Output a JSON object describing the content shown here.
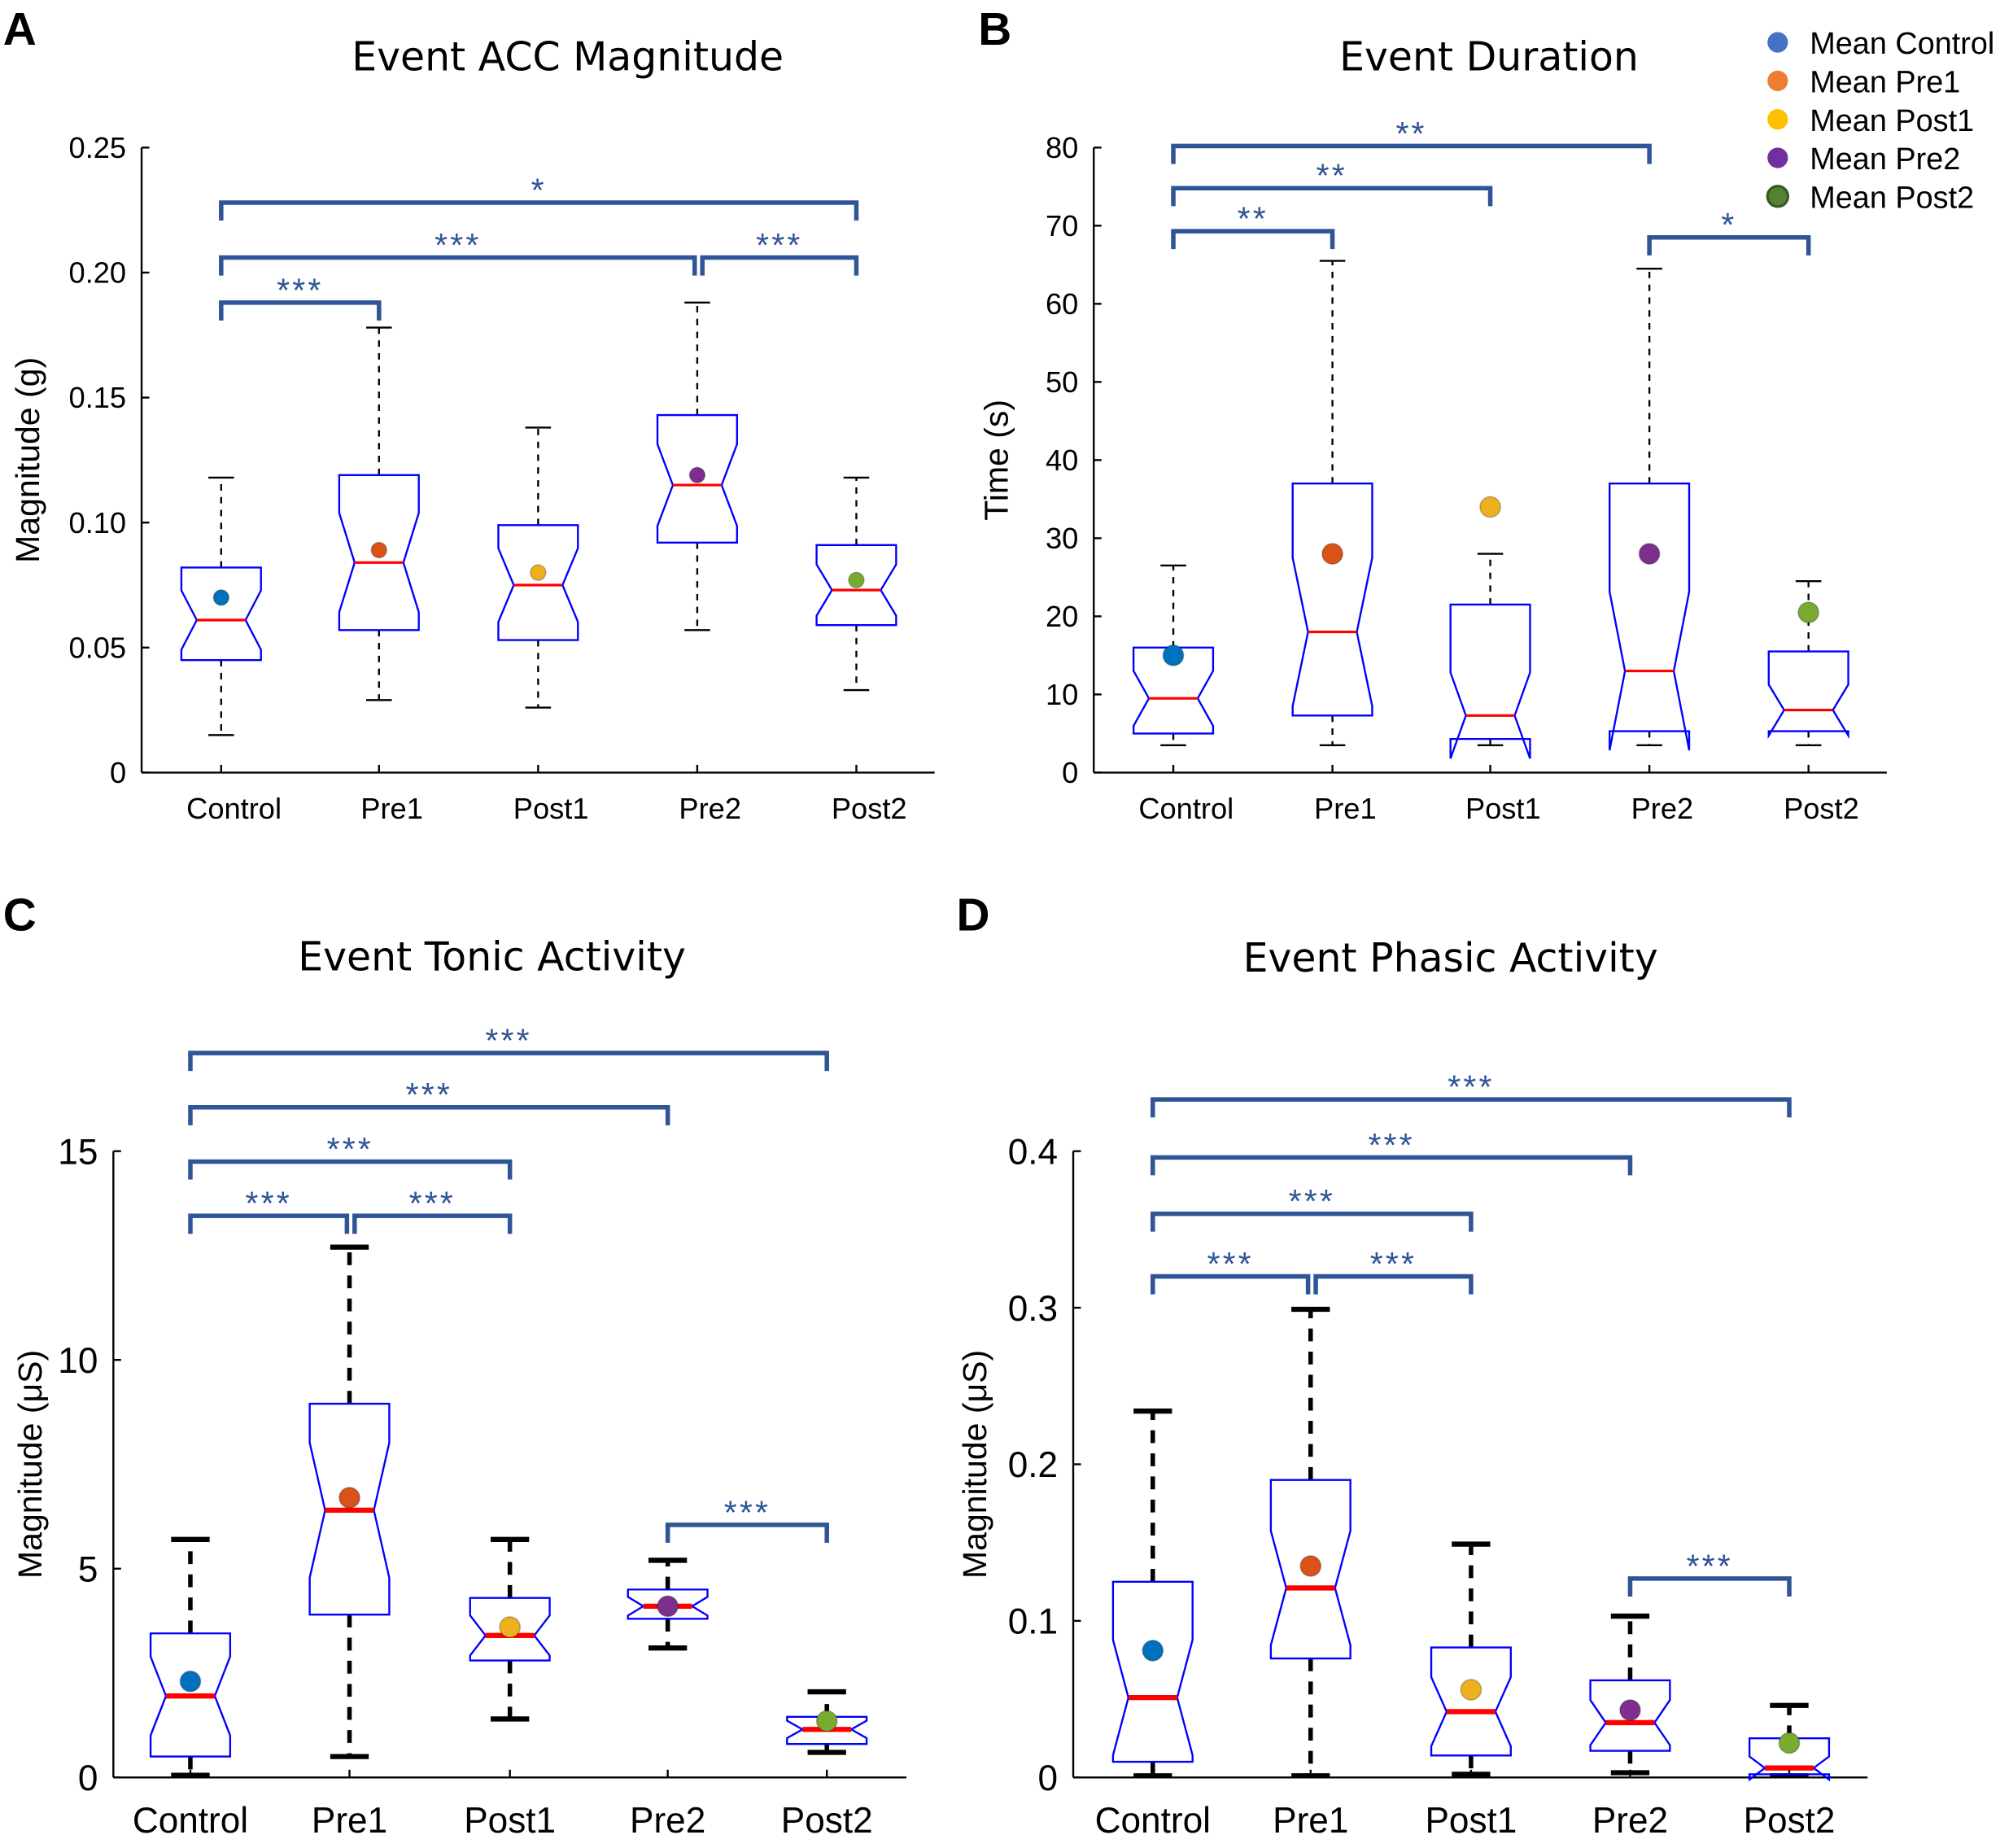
{
  "legend": [
    {
      "label": "Mean Control",
      "color": "#4472c4"
    },
    {
      "label": "Mean Pre1",
      "color": "#ed7d31"
    },
    {
      "label": "Mean Post1",
      "color": "#ffc000"
    },
    {
      "label": "Mean Pre2",
      "color": "#7030a0"
    },
    {
      "label": "Mean Post2",
      "color": "#548235"
    }
  ],
  "colors": {
    "box": "#0000ff",
    "median": "#ff0000",
    "whisker": "#000000",
    "bracket": "#2f5597",
    "means": [
      "#0072bd",
      "#d95319",
      "#edb120",
      "#7e2f8e",
      "#77ac30"
    ]
  },
  "chart_data": [
    {
      "panel": "A",
      "type": "box",
      "title": "Event ACC Magnitude",
      "ylabel": "Magnitude (g)",
      "categories": [
        "Control",
        "Pre1",
        "Post1",
        "Pre2",
        "Post2"
      ],
      "ylim": [
        0,
        0.25
      ],
      "yticks": [
        "0",
        "0.05",
        "0.10",
        "0.15",
        "0.20",
        "0.25"
      ],
      "ytick_values": [
        0,
        0.05,
        0.1,
        0.15,
        0.2,
        0.25
      ],
      "boxes": [
        {
          "low": 0.015,
          "q1": 0.045,
          "median": 0.061,
          "q3": 0.082,
          "high": 0.118,
          "mean": 0.07
        },
        {
          "low": 0.029,
          "q1": 0.057,
          "median": 0.084,
          "q3": 0.119,
          "high": 0.178,
          "mean": 0.089
        },
        {
          "low": 0.026,
          "q1": 0.053,
          "median": 0.075,
          "q3": 0.099,
          "high": 0.138,
          "mean": 0.08
        },
        {
          "low": 0.057,
          "q1": 0.092,
          "median": 0.115,
          "q3": 0.143,
          "high": 0.188,
          "mean": 0.119
        },
        {
          "low": 0.033,
          "q1": 0.059,
          "median": 0.073,
          "q3": 0.091,
          "high": 0.118,
          "mean": 0.077
        }
      ],
      "significance": [
        {
          "from": 0,
          "to": 1,
          "level": 0.188,
          "label": "***"
        },
        {
          "from": 0,
          "to": 3,
          "level": 0.206,
          "label": "***"
        },
        {
          "from": 3,
          "to": 4,
          "level": 0.206,
          "label": "***"
        },
        {
          "from": 0,
          "to": 4,
          "level": 0.228,
          "label": "*"
        }
      ]
    },
    {
      "panel": "B",
      "type": "box",
      "title": "Event Duration",
      "ylabel": "Time (s)",
      "categories": [
        "Control",
        "Pre1",
        "Post1",
        "Pre2",
        "Post2"
      ],
      "ylim": [
        0,
        80
      ],
      "yticks": [
        "0",
        "10",
        "20",
        "30",
        "40",
        "50",
        "60",
        "70",
        "80"
      ],
      "ytick_values": [
        0,
        10,
        20,
        30,
        40,
        50,
        60,
        70,
        80
      ],
      "boxes": [
        {
          "low": 3.5,
          "q1": 5,
          "median": 9.5,
          "q3": 16,
          "high": 26.5,
          "mean": 15
        },
        {
          "low": 3.5,
          "q1": 7.3,
          "median": 18,
          "q3": 37,
          "high": 65.5,
          "mean": 28
        },
        {
          "low": 3.5,
          "q1": 4.3,
          "median": 7.3,
          "q3": 21.5,
          "high": 28,
          "mean": 34
        },
        {
          "low": 3.5,
          "q1": 5.3,
          "median": 13,
          "q3": 37,
          "high": 64.5,
          "mean": 28
        },
        {
          "low": 3.5,
          "q1": 5.3,
          "median": 8,
          "q3": 15.5,
          "high": 24.5,
          "mean": 20.5
        }
      ],
      "significance": [
        {
          "from": 0,
          "to": 1,
          "level": 69.3,
          "label": "**"
        },
        {
          "from": 0,
          "to": 2,
          "level": 74.8,
          "label": "**"
        },
        {
          "from": 0,
          "to": 3,
          "level": 80.2,
          "label": "**"
        },
        {
          "from": 3,
          "to": 4,
          "level": 68.5,
          "label": "*"
        }
      ]
    },
    {
      "panel": "C",
      "type": "box",
      "title": "Event Tonic Activity",
      "ylabel": "Magnitude (μS)",
      "categories": [
        "Control",
        "Pre1",
        "Post1",
        "Pre2",
        "Post2"
      ],
      "ylim": [
        0,
        15
      ],
      "yticks": [
        "0",
        "5",
        "10",
        "15"
      ],
      "ytick_values": [
        0,
        5,
        10,
        15
      ],
      "boxes": [
        {
          "low": 0.05,
          "q1": 0.5,
          "median": 1.95,
          "q3": 3.45,
          "high": 5.7,
          "mean": 2.3
        },
        {
          "low": 0.5,
          "q1": 3.9,
          "median": 6.4,
          "q3": 8.95,
          "high": 12.7,
          "mean": 6.7
        },
        {
          "low": 1.4,
          "q1": 2.8,
          "median": 3.4,
          "q3": 4.3,
          "high": 5.7,
          "mean": 3.6
        },
        {
          "low": 3.1,
          "q1": 3.8,
          "median": 4.1,
          "q3": 4.5,
          "high": 5.2,
          "mean": 4.1
        },
        {
          "low": 0.6,
          "q1": 0.8,
          "median": 1.15,
          "q3": 1.45,
          "high": 2.05,
          "mean": 1.35
        }
      ],
      "significance": [
        {
          "from": 0,
          "to": 1,
          "level": 13.45,
          "label": "***"
        },
        {
          "from": 1,
          "to": 2,
          "level": 13.45,
          "label": "***"
        },
        {
          "from": 0,
          "to": 2,
          "level": 14.75,
          "label": "***"
        },
        {
          "from": 0,
          "to": 3,
          "level": 16.05,
          "label": "***"
        },
        {
          "from": 0,
          "to": 4,
          "level": 17.35,
          "label": "***"
        },
        {
          "from": 3,
          "to": 4,
          "level": 6.05,
          "label": "***"
        }
      ]
    },
    {
      "panel": "D",
      "type": "box",
      "title": "Event Phasic Activity",
      "ylabel": "Magnitude (μS)",
      "categories": [
        "Control",
        "Pre1",
        "Post1",
        "Pre2",
        "Post2"
      ],
      "ylim": [
        0,
        0.4
      ],
      "yticks": [
        "0",
        "0.1",
        "0.2",
        "0.3",
        "0.4"
      ],
      "ytick_values": [
        0,
        0.1,
        0.2,
        0.3,
        0.4
      ],
      "boxes": [
        {
          "low": 0.001,
          "q1": 0.01,
          "median": 0.051,
          "q3": 0.125,
          "high": 0.234,
          "mean": 0.081
        },
        {
          "low": 0.001,
          "q1": 0.076,
          "median": 0.121,
          "q3": 0.19,
          "high": 0.299,
          "mean": 0.135
        },
        {
          "low": 0.002,
          "q1": 0.014,
          "median": 0.042,
          "q3": 0.083,
          "high": 0.149,
          "mean": 0.056
        },
        {
          "low": 0.003,
          "q1": 0.017,
          "median": 0.035,
          "q3": 0.062,
          "high": 0.103,
          "mean": 0.043
        },
        {
          "low": 0.001,
          "q1": 0.002,
          "median": 0.006,
          "q3": 0.025,
          "high": 0.046,
          "mean": 0.022
        }
      ],
      "significance": [
        {
          "from": 0,
          "to": 1,
          "level": 0.32,
          "label": "***"
        },
        {
          "from": 1,
          "to": 2,
          "level": 0.32,
          "label": "***"
        },
        {
          "from": 0,
          "to": 2,
          "level": 0.36,
          "label": "***"
        },
        {
          "from": 0,
          "to": 3,
          "level": 0.396,
          "label": "***"
        },
        {
          "from": 0,
          "to": 4,
          "level": 0.433,
          "label": "***"
        },
        {
          "from": 3,
          "to": 4,
          "level": 0.127,
          "label": "***"
        }
      ]
    }
  ]
}
